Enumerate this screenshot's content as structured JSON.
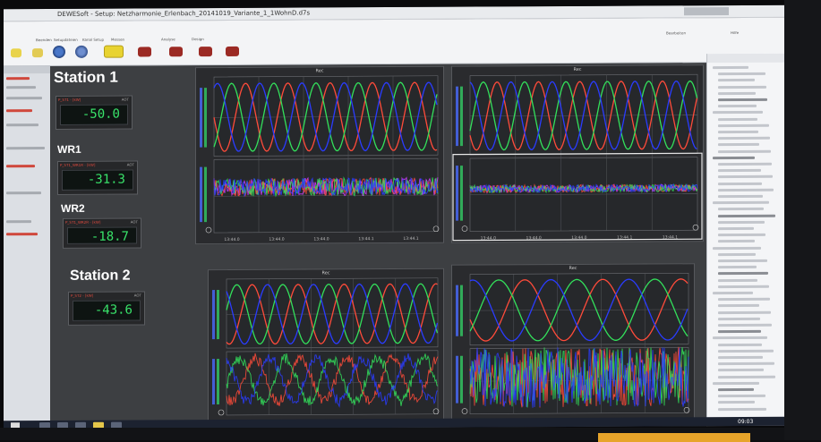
{
  "app": {
    "title": "DEWESoft - Setup: Netzharmonie_Erlenbach_20141019_Variante_1_1WohnD.d7s"
  },
  "ribbon": {
    "tabs": [
      "Beenden",
      "Setupdateien",
      "Kanal Setup",
      "Messen",
      "Analyse",
      "Design"
    ],
    "right_buttons": [
      "Bearbeiten",
      "Hilfe"
    ]
  },
  "station1": {
    "label": "Station 1",
    "meter_main": {
      "channel": "P_ST1 - [kW]",
      "aot": "AOT",
      "value": "-50.0"
    },
    "wr1": {
      "label": "WR1",
      "channel": "P_ST1_WR1R - [kW]",
      "aot": "AOT",
      "value": "-31.3"
    },
    "wr2": {
      "label": "WR2",
      "channel": "P_ST1_WR2R - [kW]",
      "aot": "AOT",
      "value": "-18.7"
    }
  },
  "station2": {
    "label": "Station 2",
    "meter_main": {
      "channel": "P_ST2 - [kW]",
      "aot": "AOT",
      "value": "-43.6"
    }
  },
  "plots": {
    "header": "Rec",
    "time_ticks_top": [
      "13:44.0",
      "13:44.0",
      "13:44.0",
      "13:44.1",
      "13:44.1"
    ],
    "time_ticks_bottom": [
      "13:44.0",
      "13:44.0",
      "13:44.0",
      "13:44.1",
      "13:44.1"
    ]
  },
  "colors": {
    "phase_l1": "#ff4b3a",
    "phase_l2": "#33e05b",
    "phase_l3": "#2a3cff",
    "accent_magenta": "#d23cff",
    "meter_text": "#39e36a"
  },
  "taskbar": {
    "time": "09:03"
  }
}
